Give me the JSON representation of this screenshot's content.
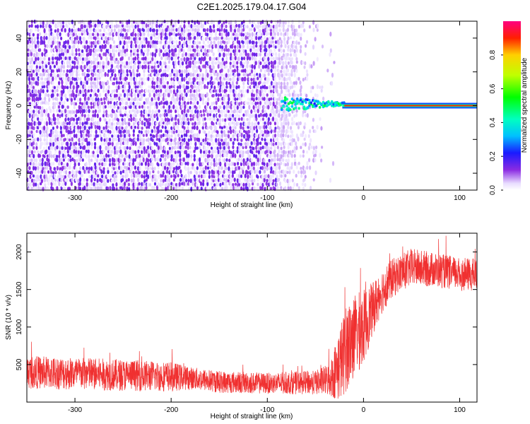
{
  "title": "C2E1.2025.179.04.17.G04",
  "chart_data": [
    {
      "type": "heatmap",
      "xlabel": "Height of straight line (km)",
      "ylabel": "Frequency (Hz)",
      "xlim": [
        -350,
        118
      ],
      "ylim": [
        -50,
        50
      ],
      "xticks": [
        -300,
        -200,
        -100,
        0,
        100
      ],
      "yticks": [
        -40,
        -20,
        0,
        20,
        40
      ],
      "colorbar": {
        "label": "Normalized spectral amplitude",
        "range": [
          0,
          1
        ],
        "ticks": [
          "0.0",
          "0.2",
          "0.4",
          "0.6",
          "0.8"
        ],
        "tick_values": [
          0.0,
          0.2,
          0.4,
          0.6,
          0.8
        ]
      },
      "features": {
        "noise_region_x": [
          -350,
          -45
        ],
        "signal_line_freq": 0,
        "signal_onset_x": -85,
        "signal_amplitude": 0.9
      }
    },
    {
      "type": "line",
      "xlabel": "Height of straight line (km)",
      "ylabel": "SNR (10 * v/v)",
      "xlim": [
        -350,
        118
      ],
      "ylim": [
        0,
        2250
      ],
      "xticks": [
        -300,
        -200,
        -100,
        0,
        100
      ],
      "yticks": [
        500,
        1000,
        1500,
        2000
      ],
      "series": [
        {
          "color": "#f03030",
          "trend_x": [
            -350,
            -300,
            -250,
            -200,
            -180,
            -150,
            -100,
            -50,
            -35,
            -25,
            -15,
            0,
            10,
            20,
            30,
            50,
            80,
            100,
            118
          ],
          "trend_y": [
            400,
            380,
            360,
            340,
            320,
            270,
            250,
            260,
            300,
            500,
            800,
            1000,
            1250,
            1500,
            1650,
            1800,
            1750,
            1700,
            1700
          ],
          "noise_amplitude": [
            220,
            220,
            210,
            200,
            150,
            150,
            140,
            160,
            220,
            500,
            600,
            500,
            350,
            300,
            260,
            250,
            230,
            220,
            220
          ]
        }
      ]
    }
  ]
}
